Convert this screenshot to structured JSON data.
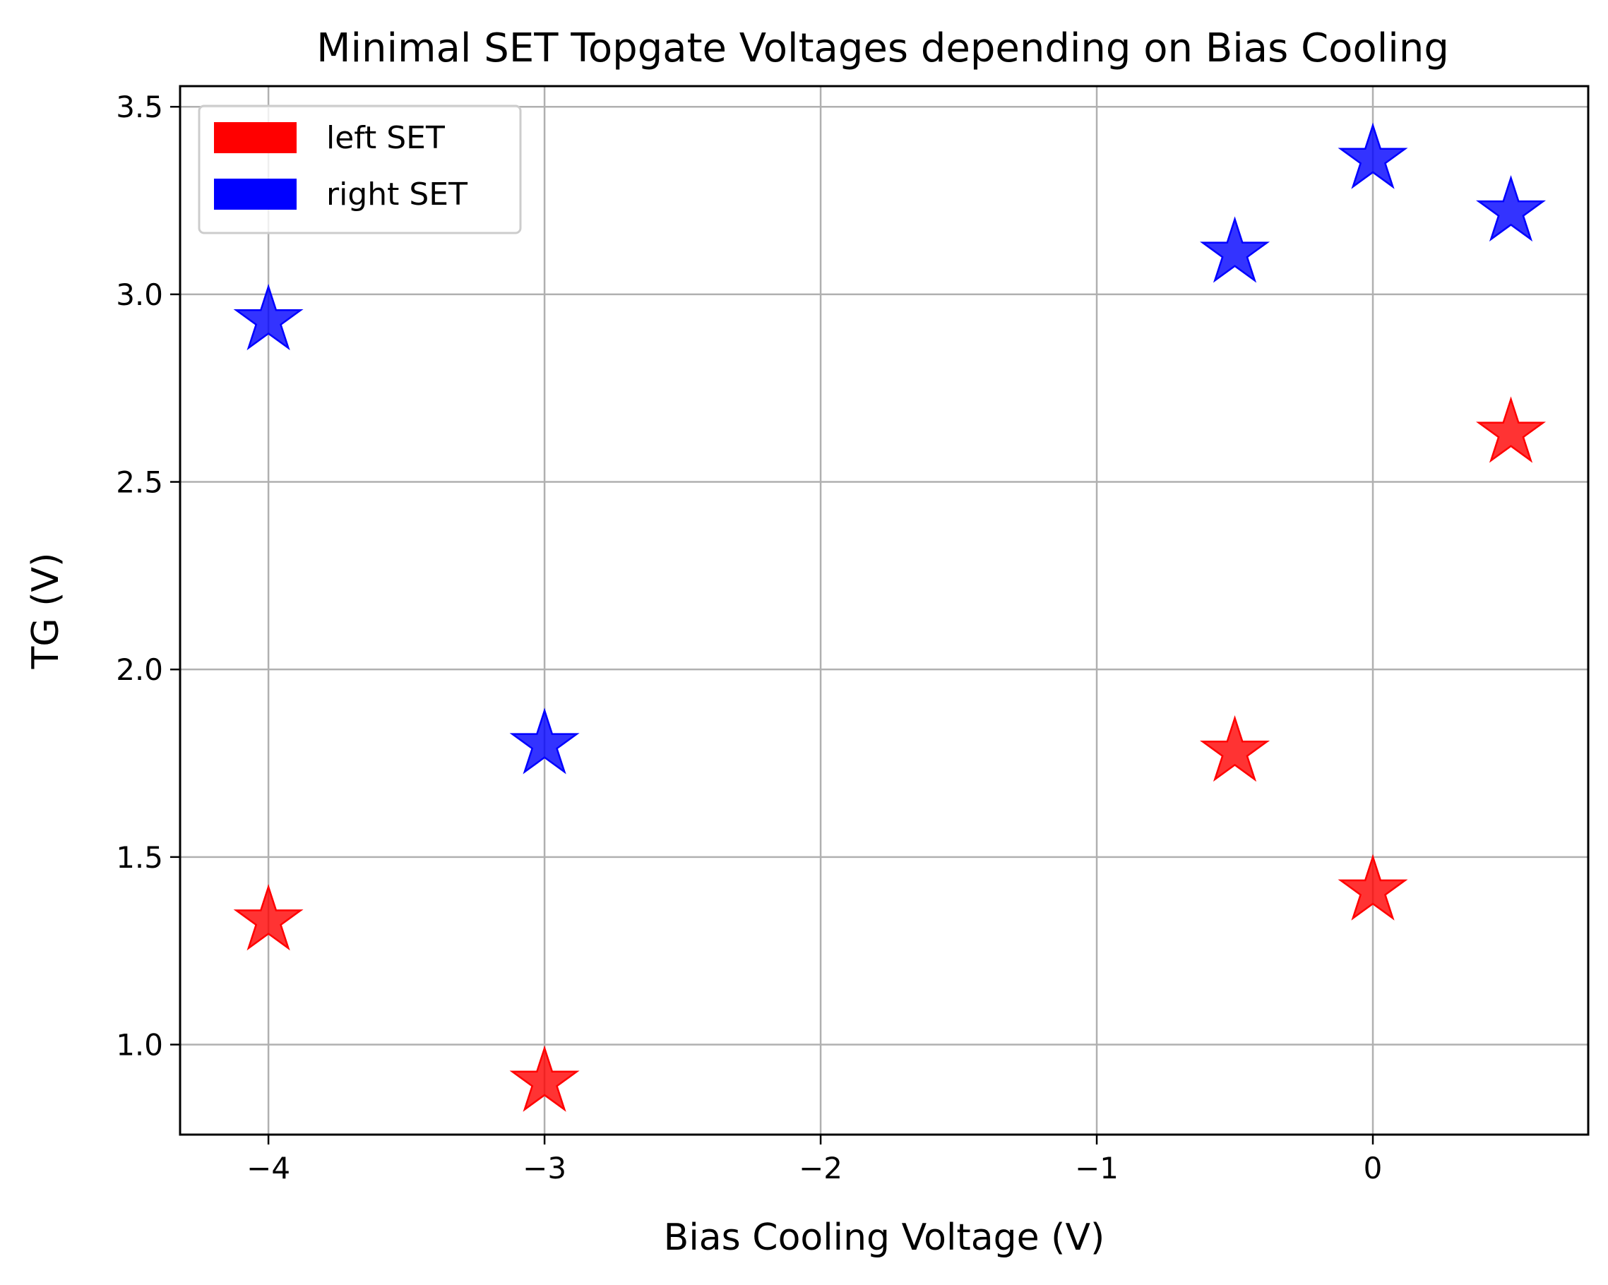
{
  "chart_data": {
    "type": "scatter",
    "title": "Minimal SET Topgate Voltages depending on Bias Cooling",
    "xlabel": "Bias Cooling Voltage (V)",
    "ylabel": "TG (V)",
    "xlim": [
      -4.32,
      0.78
    ],
    "ylim": [
      0.76,
      3.555
    ],
    "xticks": [
      -4,
      -3,
      -2,
      -1,
      0
    ],
    "xtick_labels": [
      "−4",
      "−3",
      "−2",
      "−1",
      "0"
    ],
    "yticks": [
      1.0,
      1.5,
      2.0,
      2.5,
      3.0,
      3.5
    ],
    "ytick_labels": [
      "1.0",
      "1.5",
      "2.0",
      "2.5",
      "3.0",
      "3.5"
    ],
    "grid": true,
    "legend_position": "top-left",
    "marker": "star",
    "series": [
      {
        "name": "left SET",
        "color": "#ff0000",
        "x": [
          -4,
          -3,
          -0.5,
          0,
          0.5
        ],
        "y": [
          1.33,
          0.9,
          1.78,
          1.41,
          2.63
        ]
      },
      {
        "name": "right SET",
        "color": "#0000ff",
        "x": [
          -4,
          -3,
          -0.5,
          0,
          0.5
        ],
        "y": [
          2.93,
          1.8,
          3.11,
          3.36,
          3.22
        ]
      }
    ]
  }
}
